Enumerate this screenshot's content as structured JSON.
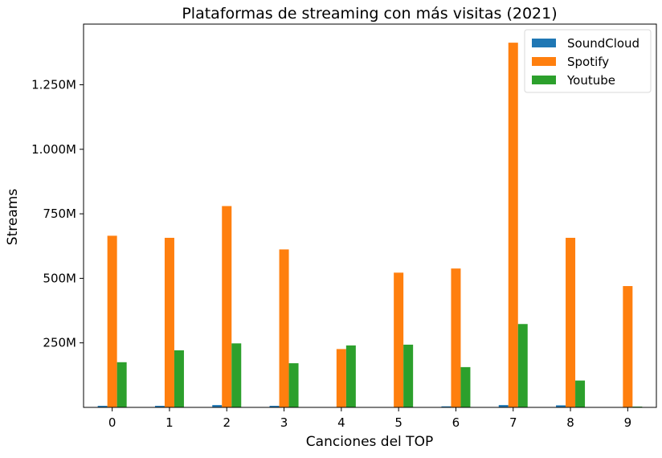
{
  "chart_data": {
    "type": "bar",
    "title": "Plataformas de streaming con más visitas (2021)",
    "xlabel": "Canciones del TOP",
    "ylabel": "Streams",
    "categories": [
      "0",
      "1",
      "2",
      "3",
      "4",
      "5",
      "6",
      "7",
      "8",
      "9"
    ],
    "series": [
      {
        "name": "SoundCloud",
        "color": "#1f77b4",
        "values": [
          6,
          6,
          9,
          6,
          0,
          1,
          4,
          9,
          8,
          0
        ]
      },
      {
        "name": "Spotify",
        "color": "#ff7f0e",
        "values": [
          665,
          657,
          780,
          612,
          226,
          522,
          538,
          1413,
          657,
          470
        ]
      },
      {
        "name": "Youtube",
        "color": "#2ca02c",
        "values": [
          175,
          221,
          248,
          171,
          240,
          243,
          156,
          323,
          104,
          3
        ]
      }
    ],
    "ylim": [
      0,
      1485
    ],
    "yticks": [
      250,
      500,
      750,
      1000,
      1250
    ],
    "ytick_labels": [
      "250M",
      "500M",
      "750M",
      "1.000M",
      "1.250M"
    ],
    "legend_position": "top-right",
    "grid": false
  }
}
